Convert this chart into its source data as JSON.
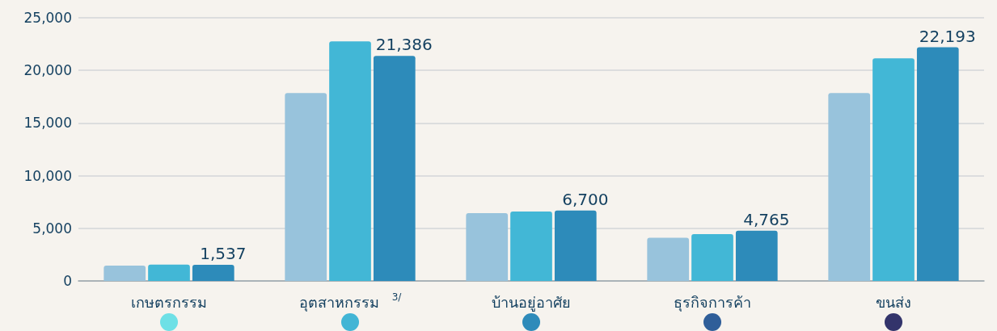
{
  "chart_data": {
    "type": "bar",
    "categories": [
      "เกษตรกรรม",
      "อุตสาหกรรม$^{3/}$",
      "บ้านอยู่อาศัย",
      "ธุรกิจการค้า",
      "ขนส่ง"
    ],
    "series": [
      {
        "color": "#98c3dc",
        "values": [
          1450,
          17850,
          6450,
          4100,
          17850
        ]
      },
      {
        "color": "#42b7d6",
        "values": [
          1550,
          22750,
          6600,
          4450,
          21150
        ]
      },
      {
        "color": "#2d8bba",
        "values": [
          1537,
          21386,
          6700,
          4765,
          22193
        ],
        "value_labels": [
          "1,537",
          "21,386",
          "6,700",
          "4,765",
          "22,193"
        ]
      }
    ],
    "ylim": [
      0,
      25000
    ],
    "yticks": [
      0,
      {
        "value": 5000,
        "label": "5,000"
      },
      {
        "value": 10000,
        "label": "10,000"
      },
      {
        "value": 15000,
        "label": "15,000"
      },
      {
        "value": 20000,
        "label": "20,000"
      },
      {
        "value": 25000,
        "label": "25,000"
      }
    ],
    "grid": "y"
  }
}
